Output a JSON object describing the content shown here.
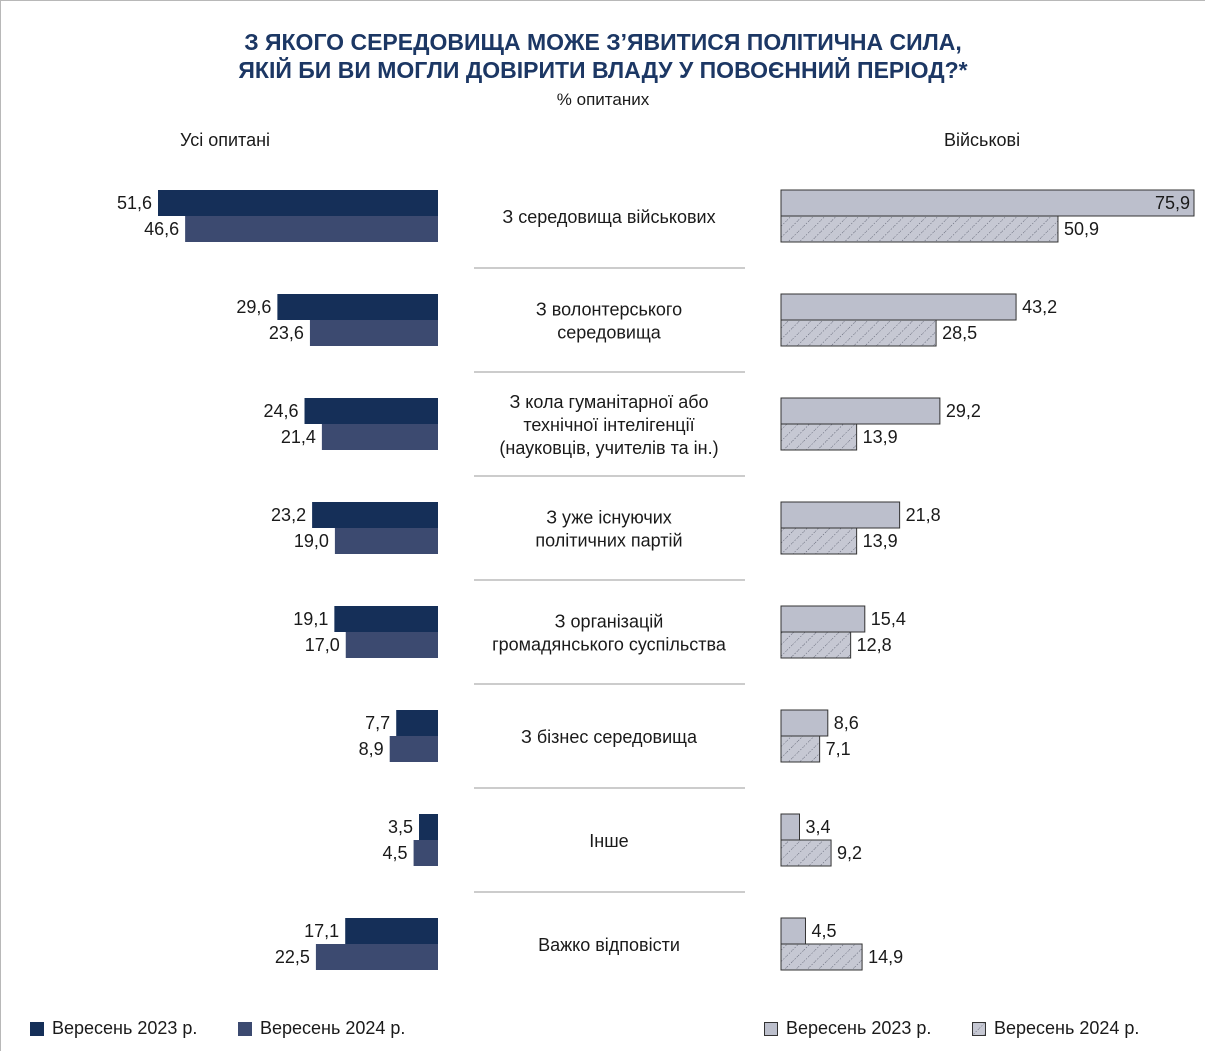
{
  "title_line1": "З ЯКОГО СЕРЕДОВИЩА МОЖЕ З’ЯВИТИСЯ ПОЛІТИЧНА СИЛА,",
  "title_line2": "ЯКІЙ БИ ВИ МОГЛИ ДОВІРИТИ ВЛАДУ У ПОВОЄННИЙ ПЕРІОД?*",
  "subtitle": "% опитаних",
  "left_panel_title": "Усі опитані",
  "right_panel_title": "Військові",
  "legend_left": [
    "Вересень 2023 р.",
    "Вересень 2024 р."
  ],
  "legend_right": [
    "Вересень 2023 р.",
    "Вересень 2024 р."
  ],
  "colors": {
    "all_2023": "#152f58",
    "all_2024": "#3c4a70",
    "mil_2023": "#bcbfcc",
    "mil_2024": "#c6c8d3",
    "title": "#1c3764"
  },
  "chart_data": {
    "type": "bar",
    "orientation": "horizontal",
    "categories": [
      "З середовища військових",
      "З волонтерського середовища",
      "З кола гуманітарної або технічної інтелігенції (науковців, учителів та ін.)",
      "З уже існуючих політичних партій",
      "З організацій громадянського суспільства",
      "З бізнес середовища",
      "Інше",
      "Важко відповісти"
    ],
    "category_lines": [
      [
        "З середовища військових"
      ],
      [
        "З волонтерського",
        "середовища"
      ],
      [
        "З кола  гуманітарної або",
        "технічної інтелігенції",
        "(науковців, учителів та ін.)"
      ],
      [
        "З уже існуючих",
        "політичних партій"
      ],
      [
        "З організацій",
        "громадянського суспільства"
      ],
      [
        "З бізнес середовища"
      ],
      [
        "Інше"
      ],
      [
        "Важко відповісти"
      ]
    ],
    "panels": [
      {
        "name": "Усі опитані",
        "series": [
          {
            "name": "Вересень 2023 р.",
            "values": [
              51.6,
              29.6,
              24.6,
              23.2,
              19.1,
              7.7,
              3.5,
              17.1
            ],
            "labels": [
              "51,6",
              "29,6",
              "24,6",
              "23,2",
              "19,1",
              "7,7",
              "3,5",
              "17,1"
            ]
          },
          {
            "name": "Вересень 2024 р.",
            "values": [
              46.6,
              23.6,
              21.4,
              19.0,
              17.0,
              8.9,
              4.5,
              22.5
            ],
            "labels": [
              "46,6",
              "23,6",
              "21,4",
              "19,0",
              "17,0",
              "8,9",
              "4,5",
              "22,5"
            ]
          }
        ]
      },
      {
        "name": "Військові",
        "series": [
          {
            "name": "Вересень 2023 р.",
            "values": [
              75.9,
              43.2,
              29.2,
              21.8,
              15.4,
              8.6,
              3.4,
              4.5
            ],
            "labels": [
              "75,9",
              "43,2",
              "29,2",
              "21,8",
              "15,4",
              "8,6",
              "3,4",
              "4,5"
            ]
          },
          {
            "name": "Вересень 2024 р.",
            "values": [
              50.9,
              28.5,
              13.9,
              13.9,
              12.8,
              7.1,
              9.2,
              14.9
            ],
            "labels": [
              "50,9",
              "28,5",
              "13,9",
              "13,9",
              "12,8",
              "7,1",
              "9,2",
              "14,9"
            ]
          }
        ]
      }
    ]
  }
}
